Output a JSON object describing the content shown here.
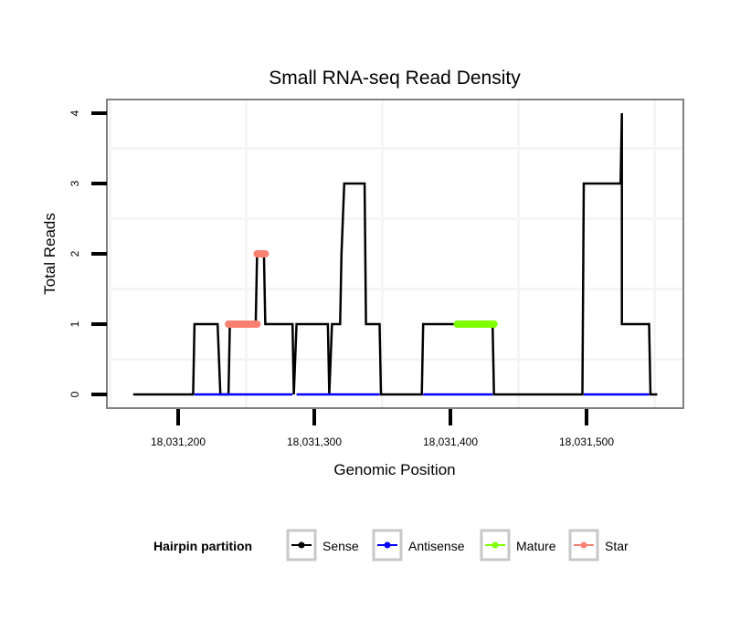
{
  "chart_data": {
    "type": "line",
    "title": "Small RNA-seq Read Density",
    "xlabel": "Genomic Position",
    "ylabel": "Total Reads",
    "xlim": [
      18031132,
      18031568
    ],
    "ylim": [
      -0.2,
      4.2
    ],
    "grid": true,
    "x_ticks": [
      18031200,
      18031300,
      18031400,
      18031500
    ],
    "x_tick_labels": [
      "18,031,200",
      "18,031,300",
      "18,031,400",
      "18,031,500"
    ],
    "y_ticks": [
      0,
      1,
      2,
      3,
      4
    ],
    "y_tick_labels": [
      "0",
      "1",
      "2",
      "3",
      "4"
    ],
    "legend": {
      "title": "Hairpin partition",
      "position": "bottom",
      "entries": [
        {
          "name": "Sense",
          "color": "#000000"
        },
        {
          "name": "Antisense",
          "color": "#0000ff"
        },
        {
          "name": "Mature",
          "color": "#7fff00"
        },
        {
          "name": "Star",
          "color": "#fa8072"
        }
      ]
    },
    "series": [
      {
        "name": "Sense",
        "color": "#000000",
        "points": [
          [
            18031167,
            0
          ],
          [
            18031211,
            0
          ],
          [
            18031212,
            1
          ],
          [
            18031229,
            1
          ],
          [
            18031231,
            0
          ],
          [
            18031237,
            0
          ],
          [
            18031238,
            1
          ],
          [
            18031257,
            1
          ],
          [
            18031258,
            2
          ],
          [
            18031263,
            2
          ],
          [
            18031264,
            1
          ],
          [
            18031284,
            1
          ],
          [
            18031285,
            0
          ],
          [
            18031287,
            1
          ],
          [
            18031310,
            1
          ],
          [
            18031311,
            0
          ],
          [
            18031313,
            1
          ],
          [
            18031319,
            1
          ],
          [
            18031320,
            2
          ],
          [
            18031322,
            3
          ],
          [
            18031337,
            3
          ],
          [
            18031338,
            1
          ],
          [
            18031348,
            1
          ],
          [
            18031349,
            0
          ],
          [
            18031379,
            0
          ],
          [
            18031380,
            1
          ],
          [
            18031431,
            1
          ],
          [
            18031432,
            0
          ],
          [
            18031497,
            0
          ],
          [
            18031498,
            3
          ],
          [
            18031525,
            3
          ],
          [
            18031526,
            4
          ],
          [
            18031526,
            1
          ],
          [
            18031546,
            1
          ],
          [
            18031547,
            0
          ],
          [
            18031552,
            0
          ]
        ]
      },
      {
        "name": "Antisense",
        "color": "#0000ff",
        "segments": [
          [
            [
              18031212,
              0
            ],
            [
              18031284,
              0
            ]
          ],
          [
            [
              18031287,
              0
            ],
            [
              18031348,
              0
            ]
          ],
          [
            [
              18031380,
              0
            ],
            [
              18031431,
              0
            ]
          ],
          [
            [
              18031498,
              0
            ],
            [
              18031546,
              0
            ]
          ]
        ]
      },
      {
        "name": "Mature",
        "color": "#7fff00",
        "segments": [
          [
            [
              18031405,
              1
            ],
            [
              18031432,
              1
            ]
          ]
        ]
      },
      {
        "name": "Star",
        "color": "#fa8072",
        "segments": [
          [
            [
              18031237,
              1
            ],
            [
              18031258,
              1
            ]
          ],
          [
            [
              18031258,
              2
            ],
            [
              18031264,
              2
            ]
          ]
        ]
      }
    ]
  }
}
